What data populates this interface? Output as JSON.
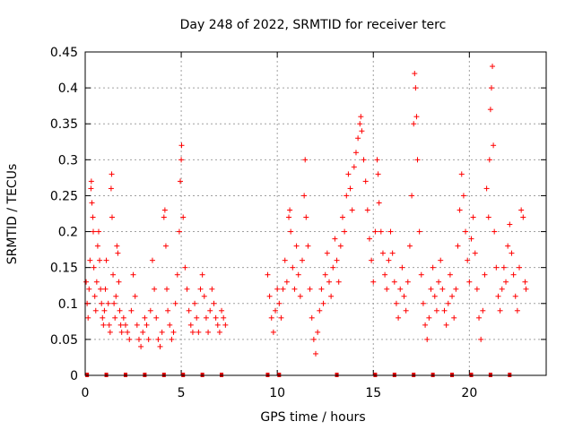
{
  "chart_data": {
    "type": "scatter",
    "title": "Day 248 of 2022, SRMTID for receiver terc",
    "xlabel": "GPS time / hours",
    "ylabel": "SRMTID / TECUs",
    "xlim": [
      0,
      24
    ],
    "ylim": [
      0,
      0.45
    ],
    "xticks": [
      0,
      5,
      10,
      15,
      20
    ],
    "yticks": [
      0,
      0.05,
      0.1,
      0.15,
      0.2,
      0.25,
      0.3,
      0.35,
      0.4,
      0.45
    ],
    "ytick_labels": [
      "0",
      "0.05",
      "0.1",
      "0.15",
      "0.2",
      "0.25",
      "0.3",
      "0.35",
      "0.4",
      "0.45"
    ],
    "xtick_labels": [
      "0",
      "5",
      "10",
      "15",
      "20"
    ],
    "grid": true,
    "marker": "+",
    "color": "#ff0000",
    "series": [
      {
        "points": [
          [
            0.05,
            0.13
          ],
          [
            0.1,
            0.1
          ],
          [
            0.15,
            0.08
          ],
          [
            0.2,
            0.12
          ],
          [
            0.25,
            0.16
          ],
          [
            0.3,
            0.26
          ],
          [
            0.32,
            0.27
          ],
          [
            0.35,
            0.24
          ],
          [
            0.4,
            0.22
          ],
          [
            0.42,
            0.2
          ],
          [
            0.45,
            0.15
          ],
          [
            0.5,
            0.11
          ],
          [
            0.55,
            0.09
          ],
          [
            0.6,
            0.13
          ],
          [
            0.65,
            0.18
          ],
          [
            0.7,
            0.2
          ],
          [
            0.75,
            0.16
          ],
          [
            0.8,
            0.12
          ],
          [
            0.85,
            0.1
          ],
          [
            0.9,
            0.08
          ],
          [
            0.95,
            0.07
          ],
          [
            1.0,
            0.09
          ],
          [
            1.05,
            0.12
          ],
          [
            1.1,
            0.16
          ],
          [
            1.2,
            0.1
          ],
          [
            1.25,
            0.07
          ],
          [
            1.3,
            0.06
          ],
          [
            1.35,
            0.26
          ],
          [
            1.38,
            0.28
          ],
          [
            1.4,
            0.22
          ],
          [
            1.45,
            0.14
          ],
          [
            1.5,
            0.1
          ],
          [
            1.55,
            0.08
          ],
          [
            1.6,
            0.11
          ],
          [
            1.65,
            0.18
          ],
          [
            1.7,
            0.17
          ],
          [
            1.75,
            0.13
          ],
          [
            1.8,
            0.09
          ],
          [
            1.85,
            0.07
          ],
          [
            1.9,
            0.06
          ],
          [
            2.0,
            0.08
          ],
          [
            2.1,
            0.07
          ],
          [
            2.2,
            0.06
          ],
          [
            2.3,
            0.05
          ],
          [
            2.4,
            0.09
          ],
          [
            2.5,
            0.14
          ],
          [
            2.6,
            0.11
          ],
          [
            2.7,
            0.07
          ],
          [
            2.8,
            0.05
          ],
          [
            2.9,
            0.04
          ],
          [
            3.0,
            0.06
          ],
          [
            3.1,
            0.08
          ],
          [
            3.2,
            0.07
          ],
          [
            3.3,
            0.05
          ],
          [
            3.4,
            0.09
          ],
          [
            3.5,
            0.16
          ],
          [
            3.6,
            0.12
          ],
          [
            3.7,
            0.08
          ],
          [
            3.8,
            0.05
          ],
          [
            3.9,
            0.04
          ],
          [
            4.0,
            0.06
          ],
          [
            4.1,
            0.22
          ],
          [
            4.15,
            0.23
          ],
          [
            4.2,
            0.18
          ],
          [
            4.25,
            0.12
          ],
          [
            4.3,
            0.09
          ],
          [
            4.4,
            0.07
          ],
          [
            4.5,
            0.05
          ],
          [
            4.6,
            0.06
          ],
          [
            4.7,
            0.1
          ],
          [
            4.8,
            0.14
          ],
          [
            4.9,
            0.2
          ],
          [
            4.95,
            0.27
          ],
          [
            5.0,
            0.3
          ],
          [
            5.02,
            0.32
          ],
          [
            5.1,
            0.22
          ],
          [
            5.2,
            0.15
          ],
          [
            5.3,
            0.12
          ],
          [
            5.4,
            0.09
          ],
          [
            5.5,
            0.07
          ],
          [
            5.6,
            0.06
          ],
          [
            5.7,
            0.1
          ],
          [
            5.8,
            0.08
          ],
          [
            5.9,
            0.06
          ],
          [
            6.0,
            0.12
          ],
          [
            6.1,
            0.14
          ],
          [
            6.2,
            0.11
          ],
          [
            6.3,
            0.08
          ],
          [
            6.4,
            0.06
          ],
          [
            6.5,
            0.09
          ],
          [
            6.6,
            0.12
          ],
          [
            6.7,
            0.1
          ],
          [
            6.8,
            0.08
          ],
          [
            6.9,
            0.07
          ],
          [
            7.0,
            0.06
          ],
          [
            7.1,
            0.09
          ],
          [
            7.2,
            0.08
          ],
          [
            7.3,
            0.07
          ],
          [
            9.5,
            0.14
          ],
          [
            9.6,
            0.11
          ],
          [
            9.7,
            0.08
          ],
          [
            9.8,
            0.06
          ],
          [
            9.9,
            0.09
          ],
          [
            10.0,
            0.12
          ],
          [
            10.1,
            0.1
          ],
          [
            10.2,
            0.08
          ],
          [
            10.3,
            0.12
          ],
          [
            10.4,
            0.16
          ],
          [
            10.5,
            0.13
          ],
          [
            10.6,
            0.22
          ],
          [
            10.65,
            0.23
          ],
          [
            10.7,
            0.2
          ],
          [
            10.8,
            0.15
          ],
          [
            10.9,
            0.12
          ],
          [
            11.0,
            0.18
          ],
          [
            11.1,
            0.14
          ],
          [
            11.2,
            0.11
          ],
          [
            11.3,
            0.16
          ],
          [
            11.4,
            0.25
          ],
          [
            11.45,
            0.3
          ],
          [
            11.5,
            0.22
          ],
          [
            11.6,
            0.18
          ],
          [
            11.7,
            0.12
          ],
          [
            11.8,
            0.08
          ],
          [
            11.9,
            0.05
          ],
          [
            12.0,
            0.03
          ],
          [
            12.1,
            0.06
          ],
          [
            12.2,
            0.09
          ],
          [
            12.3,
            0.12
          ],
          [
            12.4,
            0.1
          ],
          [
            12.5,
            0.14
          ],
          [
            12.6,
            0.17
          ],
          [
            12.7,
            0.13
          ],
          [
            12.8,
            0.11
          ],
          [
            12.9,
            0.15
          ],
          [
            13.0,
            0.19
          ],
          [
            13.1,
            0.16
          ],
          [
            13.2,
            0.13
          ],
          [
            13.3,
            0.18
          ],
          [
            13.4,
            0.22
          ],
          [
            13.5,
            0.2
          ],
          [
            13.6,
            0.25
          ],
          [
            13.7,
            0.28
          ],
          [
            13.8,
            0.26
          ],
          [
            13.9,
            0.23
          ],
          [
            14.0,
            0.29
          ],
          [
            14.1,
            0.31
          ],
          [
            14.2,
            0.33
          ],
          [
            14.3,
            0.35
          ],
          [
            14.35,
            0.36
          ],
          [
            14.4,
            0.34
          ],
          [
            14.5,
            0.3
          ],
          [
            14.6,
            0.27
          ],
          [
            14.7,
            0.23
          ],
          [
            14.8,
            0.19
          ],
          [
            14.9,
            0.16
          ],
          [
            15.0,
            0.13
          ],
          [
            15.1,
            0.2
          ],
          [
            15.2,
            0.3
          ],
          [
            15.25,
            0.28
          ],
          [
            15.3,
            0.24
          ],
          [
            15.4,
            0.2
          ],
          [
            15.5,
            0.17
          ],
          [
            15.6,
            0.14
          ],
          [
            15.7,
            0.12
          ],
          [
            15.8,
            0.16
          ],
          [
            15.9,
            0.2
          ],
          [
            16.0,
            0.17
          ],
          [
            16.1,
            0.13
          ],
          [
            16.2,
            0.1
          ],
          [
            16.3,
            0.08
          ],
          [
            16.4,
            0.12
          ],
          [
            16.5,
            0.15
          ],
          [
            16.6,
            0.11
          ],
          [
            16.7,
            0.09
          ],
          [
            16.8,
            0.13
          ],
          [
            16.9,
            0.18
          ],
          [
            17.0,
            0.25
          ],
          [
            17.1,
            0.35
          ],
          [
            17.15,
            0.42
          ],
          [
            17.2,
            0.4
          ],
          [
            17.25,
            0.36
          ],
          [
            17.3,
            0.3
          ],
          [
            17.4,
            0.2
          ],
          [
            17.5,
            0.14
          ],
          [
            17.6,
            0.1
          ],
          [
            17.7,
            0.07
          ],
          [
            17.8,
            0.05
          ],
          [
            17.9,
            0.08
          ],
          [
            18.0,
            0.12
          ],
          [
            18.1,
            0.15
          ],
          [
            18.2,
            0.11
          ],
          [
            18.3,
            0.09
          ],
          [
            18.4,
            0.13
          ],
          [
            18.5,
            0.16
          ],
          [
            18.6,
            0.12
          ],
          [
            18.7,
            0.09
          ],
          [
            18.8,
            0.07
          ],
          [
            18.9,
            0.1
          ],
          [
            19.0,
            0.14
          ],
          [
            19.1,
            0.11
          ],
          [
            19.2,
            0.08
          ],
          [
            19.3,
            0.12
          ],
          [
            19.4,
            0.18
          ],
          [
            19.5,
            0.23
          ],
          [
            19.6,
            0.28
          ],
          [
            19.7,
            0.25
          ],
          [
            19.8,
            0.2
          ],
          [
            19.9,
            0.16
          ],
          [
            20.0,
            0.13
          ],
          [
            20.1,
            0.19
          ],
          [
            20.2,
            0.22
          ],
          [
            20.3,
            0.17
          ],
          [
            20.4,
            0.12
          ],
          [
            20.5,
            0.08
          ],
          [
            20.6,
            0.05
          ],
          [
            20.7,
            0.09
          ],
          [
            20.8,
            0.14
          ],
          [
            20.9,
            0.26
          ],
          [
            21.0,
            0.22
          ],
          [
            21.05,
            0.3
          ],
          [
            21.1,
            0.37
          ],
          [
            21.15,
            0.4
          ],
          [
            21.2,
            0.43
          ],
          [
            21.25,
            0.32
          ],
          [
            21.3,
            0.2
          ],
          [
            21.4,
            0.15
          ],
          [
            21.5,
            0.11
          ],
          [
            21.6,
            0.09
          ],
          [
            21.7,
            0.12
          ],
          [
            21.8,
            0.15
          ],
          [
            21.9,
            0.13
          ],
          [
            22.0,
            0.18
          ],
          [
            22.1,
            0.21
          ],
          [
            22.2,
            0.17
          ],
          [
            22.3,
            0.14
          ],
          [
            22.4,
            0.11
          ],
          [
            22.5,
            0.09
          ],
          [
            22.6,
            0.15
          ],
          [
            22.7,
            0.23
          ],
          [
            22.8,
            0.22
          ],
          [
            22.9,
            0.13
          ],
          [
            22.95,
            0.12
          ]
        ]
      }
    ],
    "baseline_marks_x": [
      0.1,
      1.1,
      2.1,
      3.1,
      4.1,
      5.1,
      6.1,
      7.1,
      9.5,
      10.1,
      13.1,
      15.1,
      16.1,
      17.1,
      18.1,
      19.1,
      20.1,
      21.1,
      22.1
    ]
  }
}
